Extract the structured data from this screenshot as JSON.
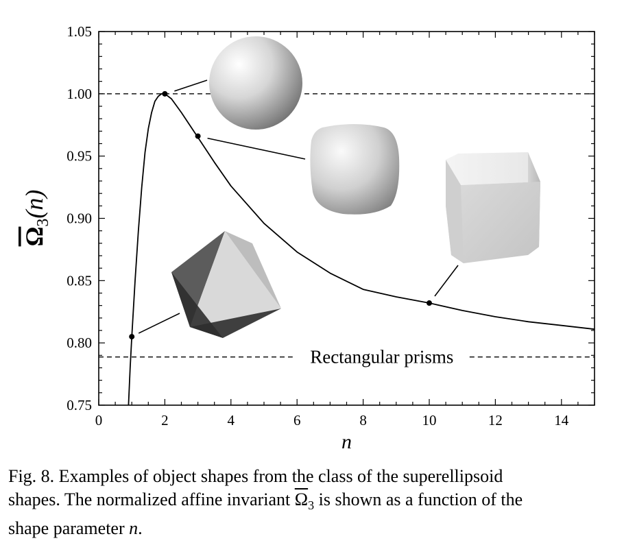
{
  "chart_data": {
    "type": "line",
    "xlabel": "n",
    "ylabel": "Ω̄3(n)",
    "ylabel_symbol": "Ω",
    "ylabel_sub": "3",
    "ylabel_arg": "(n)",
    "xlim": [
      0,
      15
    ],
    "ylim": [
      0.75,
      1.05
    ],
    "x_ticks": [
      0,
      2,
      4,
      6,
      8,
      10,
      12,
      14
    ],
    "x_tick_labels": [
      "0",
      "2",
      "4",
      "6",
      "8",
      "10",
      "12",
      "14"
    ],
    "y_ticks": [
      0.75,
      0.8,
      0.85,
      0.9,
      0.95,
      1.0,
      1.05
    ],
    "y_tick_labels": [
      "0.75",
      "0.80",
      "0.85",
      "0.90",
      "0.95",
      "1.00",
      "1.05"
    ],
    "grid": false,
    "series": [
      {
        "x": [
          0.9,
          0.95,
          1.0,
          1.1,
          1.2,
          1.3,
          1.4,
          1.5,
          1.6,
          1.7,
          1.8,
          1.9,
          2.0,
          2.2,
          2.5,
          3.0,
          3.5,
          4.0,
          5.0,
          6.0,
          7.0,
          8.0,
          9.0,
          10.0,
          11.0,
          12.0,
          13.0,
          14.0,
          15.0
        ],
        "y": [
          0.75,
          0.78,
          0.805,
          0.85,
          0.89,
          0.925,
          0.953,
          0.972,
          0.985,
          0.994,
          0.998,
          1.0,
          1.0,
          0.996,
          0.985,
          0.965,
          0.945,
          0.926,
          0.896,
          0.873,
          0.856,
          0.843,
          0.837,
          0.832,
          0.826,
          0.821,
          0.817,
          0.814,
          0.811
        ]
      }
    ],
    "marked_points": [
      {
        "x": 1.0,
        "y": 0.805
      },
      {
        "x": 2.0,
        "y": 1.0
      },
      {
        "x": 3.0,
        "y": 0.966
      },
      {
        "x": 10.0,
        "y": 0.832
      }
    ],
    "reference_lines": [
      {
        "y": 1.0,
        "style": "dashed",
        "label": ""
      },
      {
        "y": 0.7887,
        "style": "dashed",
        "label": "Rectangular prisms"
      }
    ],
    "annotations": [
      {
        "shape": "octahedron",
        "at_x": 1.0
      },
      {
        "shape": "sphere",
        "at_x": 2.0
      },
      {
        "shape": "rounded-cube",
        "at_x": 3.0
      },
      {
        "shape": "cube",
        "at_x": 10.0
      }
    ]
  },
  "caption": {
    "line1": "Fig. 8. Examples of object shapes from the class of the superellipsoid",
    "line2_pre": "shapes. The normalized affine invariant ",
    "omega_symbol": "Ω",
    "omega_sub": "3",
    "line2_post": " is shown as a function of the",
    "line3_pre": "shape parameter ",
    "line3_var": "n",
    "line3_post": "."
  }
}
